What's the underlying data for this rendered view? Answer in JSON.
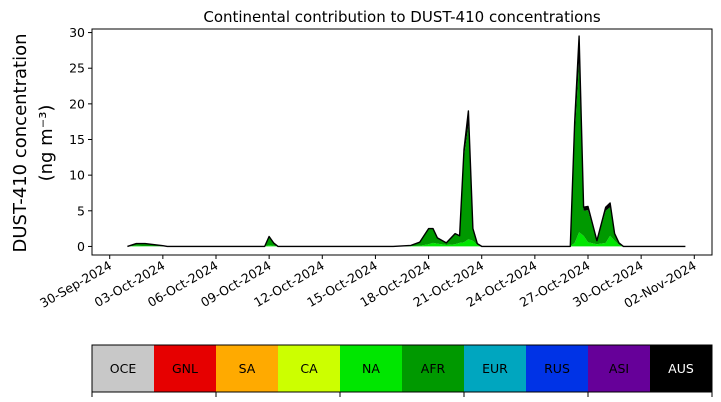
{
  "chart_data": {
    "type": "area",
    "stacked": true,
    "title": "Continental contribution to DUST-410 concentrations",
    "ylabel_line1": "DUST-410 concentration",
    "ylabel_line2": "(ng m⁻³)",
    "xlabel": "",
    "x_axis_type": "date",
    "xlim": [
      "2024-09-29",
      "2024-11-03"
    ],
    "ylim": [
      -1.2,
      30.5
    ],
    "y_ticks": [
      0,
      5,
      10,
      15,
      20,
      25,
      30
    ],
    "x_ticks": [
      "2024-09-30",
      "2024-10-03",
      "2024-10-06",
      "2024-10-09",
      "2024-10-12",
      "2024-10-15",
      "2024-10-18",
      "2024-10-21",
      "2024-10-24",
      "2024-10-27",
      "2024-10-30",
      "2024-11-02"
    ],
    "x_tick_labels": [
      "30-Sep-2024",
      "03-Oct-2024",
      "06-Oct-2024",
      "09-Oct-2024",
      "12-Oct-2024",
      "15-Oct-2024",
      "18-Oct-2024",
      "21-Oct-2024",
      "24-Oct-2024",
      "27-Oct-2024",
      "30-Oct-2024",
      "02-Nov-2024"
    ],
    "grid": false,
    "series": [
      {
        "name": "OCE",
        "color": "#c8c8c8"
      },
      {
        "name": "GNL",
        "color": "#e60000"
      },
      {
        "name": "SA",
        "color": "#ffaa00"
      },
      {
        "name": "CA",
        "color": "#ccff00"
      },
      {
        "name": "NA",
        "color": "#00e600",
        "x": [
          "2024-10-01T00:00",
          "2024-10-01T12:00",
          "2024-10-02T00:00",
          "2024-10-03T00:00",
          "2024-10-03T06:00",
          "2024-10-03T12:00",
          "2024-10-08T18:00",
          "2024-10-09T00:00",
          "2024-10-09T06:00",
          "2024-10-09T12:00",
          "2024-10-16T00:00",
          "2024-10-17T00:00",
          "2024-10-17T12:00",
          "2024-10-18T00:00",
          "2024-10-18T06:00",
          "2024-10-18T12:00",
          "2024-10-19T00:00",
          "2024-10-19T12:00",
          "2024-10-19T18:00",
          "2024-10-20T00:00",
          "2024-10-20T06:00",
          "2024-10-20T12:00",
          "2024-10-20T18:00",
          "2024-10-21T00:00",
          "2024-10-26T00:00",
          "2024-10-26T06:00",
          "2024-10-26T12:00",
          "2024-10-26T18:00",
          "2024-10-27T00:00",
          "2024-10-27T12:00",
          "2024-10-28T00:00",
          "2024-10-28T06:00",
          "2024-10-28T12:00",
          "2024-10-28T18:00",
          "2024-10-29T00:00",
          "2024-11-01T12:00"
        ],
        "values": [
          0,
          0.1,
          0.05,
          0,
          0,
          0,
          0,
          0.2,
          0.1,
          0,
          0,
          0.05,
          0.1,
          0.3,
          0.5,
          0.4,
          0.2,
          0.3,
          0.5,
          0.6,
          1.0,
          0.8,
          0.2,
          0,
          0,
          0.5,
          2.0,
          1.5,
          0.6,
          0.3,
          0.5,
          1.5,
          0.8,
          0.2,
          0,
          0
        ]
      },
      {
        "name": "AFR",
        "color": "#009900",
        "x": [
          "2024-10-01T00:00",
          "2024-10-01T12:00",
          "2024-10-02T00:00",
          "2024-10-03T00:00",
          "2024-10-03T06:00",
          "2024-10-03T12:00",
          "2024-10-08T18:00",
          "2024-10-09T00:00",
          "2024-10-09T06:00",
          "2024-10-09T12:00",
          "2024-10-16T00:00",
          "2024-10-17T00:00",
          "2024-10-17T12:00",
          "2024-10-18T00:00",
          "2024-10-18T06:00",
          "2024-10-18T12:00",
          "2024-10-19T00:00",
          "2024-10-19T12:00",
          "2024-10-19T18:00",
          "2024-10-20T00:00",
          "2024-10-20T06:00",
          "2024-10-20T12:00",
          "2024-10-20T18:00",
          "2024-10-21T00:00",
          "2024-10-26T00:00",
          "2024-10-26T06:00",
          "2024-10-26T12:00",
          "2024-10-26T18:00",
          "2024-10-27T00:00",
          "2024-10-27T12:00",
          "2024-10-28T00:00",
          "2024-10-28T06:00",
          "2024-10-28T12:00",
          "2024-10-28T18:00",
          "2024-10-29T00:00",
          "2024-11-01T12:00"
        ],
        "values": [
          0,
          0.3,
          0.35,
          0.1,
          0,
          0,
          0,
          1.2,
          0.4,
          0,
          0,
          0.1,
          0.5,
          2.2,
          2.0,
          0.8,
          0.3,
          1.5,
          1.0,
          12.0,
          16.0,
          1.5,
          0.2,
          0,
          0,
          15.0,
          24.0,
          3.5,
          4.5,
          0.5,
          4.5,
          4.0,
          1.0,
          0.3,
          0,
          0
        ]
      },
      {
        "name": "EUR",
        "color": "#00a6bf"
      },
      {
        "name": "RUS",
        "color": "#0033e6"
      },
      {
        "name": "ASI",
        "color": "#660099"
      },
      {
        "name": "AUS",
        "color": "#000000",
        "x": [
          "2024-10-01T00:00",
          "2024-10-01T12:00",
          "2024-10-02T00:00",
          "2024-10-03T00:00",
          "2024-10-03T06:00",
          "2024-10-03T12:00",
          "2024-10-08T18:00",
          "2024-10-09T00:00",
          "2024-10-09T06:00",
          "2024-10-09T12:00",
          "2024-10-16T00:00",
          "2024-10-17T00:00",
          "2024-10-17T12:00",
          "2024-10-18T00:00",
          "2024-10-18T06:00",
          "2024-10-18T12:00",
          "2024-10-19T00:00",
          "2024-10-19T12:00",
          "2024-10-19T18:00",
          "2024-10-20T00:00",
          "2024-10-20T06:00",
          "2024-10-20T12:00",
          "2024-10-20T18:00",
          "2024-10-21T00:00",
          "2024-10-26T00:00",
          "2024-10-26T06:00",
          "2024-10-26T12:00",
          "2024-10-26T18:00",
          "2024-10-27T00:00",
          "2024-10-27T12:00",
          "2024-10-28T00:00",
          "2024-10-28T06:00",
          "2024-10-28T12:00",
          "2024-10-28T18:00",
          "2024-10-29T00:00",
          "2024-11-01T12:00"
        ],
        "values": [
          0,
          0,
          0,
          0,
          0,
          0,
          0,
          0,
          0,
          0,
          0,
          0,
          0,
          0,
          0,
          0,
          0,
          0,
          0,
          1.0,
          2.0,
          0.2,
          0,
          0,
          0,
          2.0,
          3.5,
          0.5,
          0.5,
          0,
          0.5,
          0.6,
          0,
          0,
          0,
          0
        ]
      }
    ]
  }
}
